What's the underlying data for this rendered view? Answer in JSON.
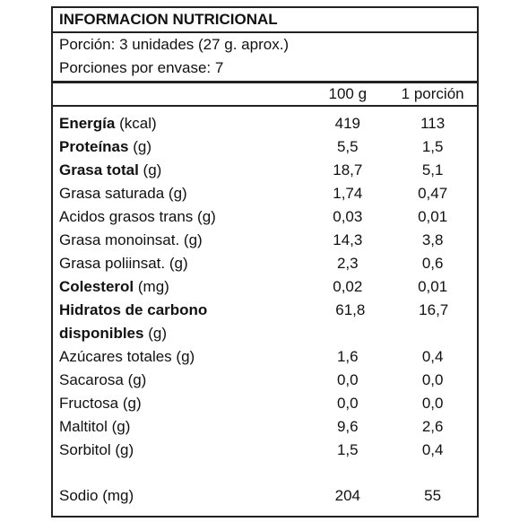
{
  "header": {
    "title": "INFORMACION NUTRICIONAL",
    "serving": "Porción: 3 unidades (27 g. aprox.)",
    "servings_per_container": "Porciones por envase: 7"
  },
  "table": {
    "columns": [
      "100 g",
      "1 porción"
    ],
    "rows": [
      {
        "name": "Energía",
        "unit": "(kcal)",
        "bold": true,
        "values": [
          "419",
          "113"
        ]
      },
      {
        "name": "Proteínas",
        "unit": "(g)",
        "bold": true,
        "values": [
          "5,5",
          "1,5"
        ]
      },
      {
        "name": "Grasa total",
        "unit": "(g)",
        "bold": true,
        "values": [
          "18,7",
          "5,1"
        ]
      },
      {
        "name": "Grasa saturada",
        "unit": "(g)",
        "bold": false,
        "values": [
          "1,74",
          "0,47"
        ]
      },
      {
        "name": "Acidos grasos trans",
        "unit": "(g)",
        "bold": false,
        "values": [
          "0,03",
          "0,01"
        ]
      },
      {
        "name": "Grasa monoinsat.",
        "unit": "(g)",
        "bold": false,
        "values": [
          "14,3",
          "3,8"
        ]
      },
      {
        "name": "Grasa poliinsat.",
        "unit": "(g)",
        "bold": false,
        "values": [
          "2,3",
          "0,6"
        ]
      },
      {
        "name": "Colesterol",
        "unit": "(mg)",
        "bold": true,
        "values": [
          "0,02",
          "0,01"
        ]
      },
      {
        "name": "Hidratos de carbono disponibles",
        "unit": "(g)",
        "bold": true,
        "values": [
          "61,8",
          "16,7"
        ]
      },
      {
        "name": "Azúcares totales",
        "unit": "(g)",
        "bold": false,
        "values": [
          "1,6",
          "0,4"
        ]
      },
      {
        "name": "Sacarosa",
        "unit": "(g)",
        "bold": false,
        "values": [
          "0,0",
          "0,0"
        ]
      },
      {
        "name": "Fructosa",
        "unit": "(g)",
        "bold": false,
        "values": [
          "0,0",
          "0,0"
        ]
      },
      {
        "name": "Maltitol",
        "unit": "(g)",
        "bold": false,
        "values": [
          "9,6",
          "2,6"
        ]
      },
      {
        "name": "Sorbitol",
        "unit": "(g)",
        "bold": false,
        "values": [
          "1,5",
          "0,4"
        ]
      },
      {
        "name": "Sodio",
        "unit": "(mg)",
        "bold": false,
        "values": [
          "204",
          "55"
        ]
      }
    ]
  }
}
